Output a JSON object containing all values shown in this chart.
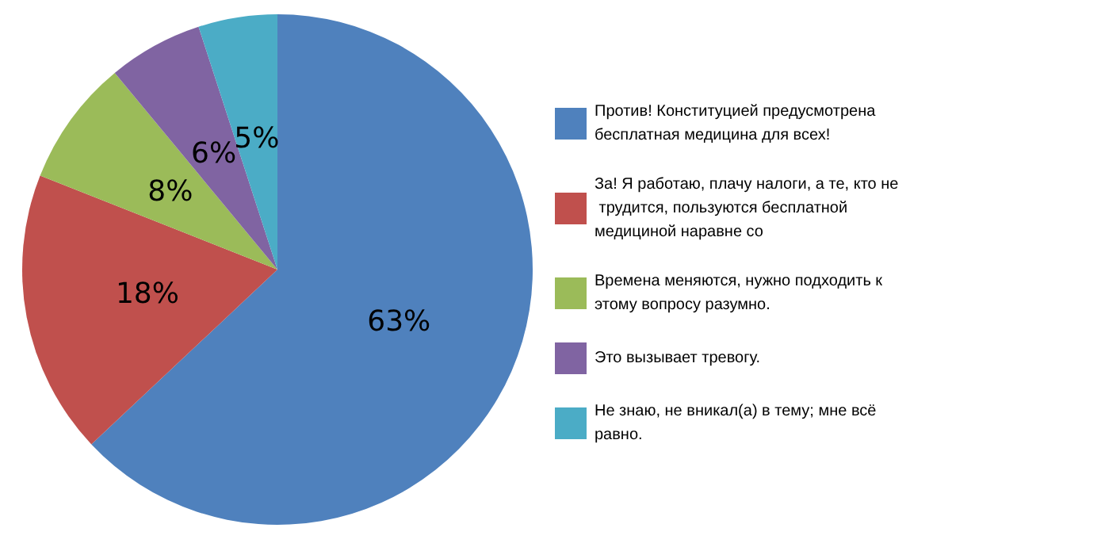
{
  "chart_data": {
    "type": "pie",
    "categories": [
      "Против! Конституцией предусмотрена бесплатная медицина для всех!",
      "За! Я работаю, плачу налоги, а те, кто не трудится, пользуются бесплатной медициной наравне со",
      "Времена меняются, нужно подходить к этому вопросу разумно.",
      "Это вызывает тревогу.",
      "Не знаю, не вникал(а) в тему; мне всё равно."
    ],
    "values": [
      63,
      18,
      8,
      6,
      5
    ],
    "colors": [
      "#4f81bd",
      "#c0504d",
      "#9bbb59",
      "#8064a2",
      "#4bacc6"
    ],
    "value_labels": [
      "63%",
      "18%",
      "8%",
      "6%",
      "5%"
    ],
    "legend": "right"
  }
}
